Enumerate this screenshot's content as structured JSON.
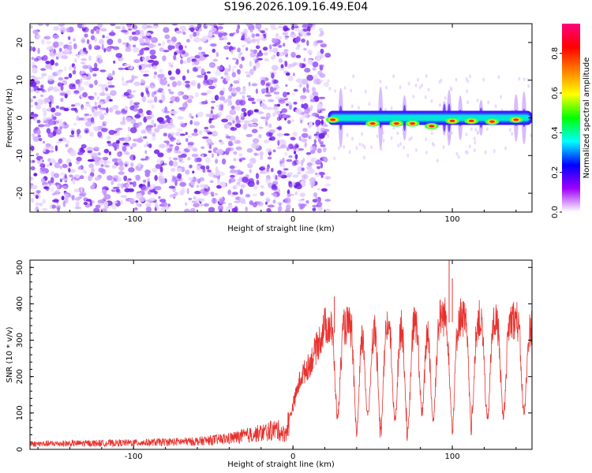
{
  "title": "S196.2026.109.16.49.E04",
  "chart_data": [
    {
      "type": "heatmap",
      "name": "spectrogram",
      "xlabel": "Height of straight line (km)",
      "ylabel": "Frequency (Hz)",
      "xlim": [
        -165,
        150
      ],
      "ylim": [
        -25,
        25
      ],
      "xticks": [
        -100,
        0,
        100
      ],
      "yticks": [
        -20,
        -10,
        0,
        10,
        20
      ],
      "xtick_labels": [
        "-100",
        "0",
        "100"
      ],
      "ytick_labels": [
        "-20",
        "-10",
        "0",
        "10",
        "20"
      ],
      "noise_region_x": [
        -165,
        22
      ],
      "signal_region_x": [
        22,
        150
      ],
      "signal_center_hz": 0,
      "hot_spots": [
        {
          "x": 25,
          "y": -0.5,
          "level": 0.9
        },
        {
          "x": 50,
          "y": -1.5,
          "level": 0.75
        },
        {
          "x": 65,
          "y": -1.5,
          "level": 0.8
        },
        {
          "x": 75,
          "y": -1.5,
          "level": 0.85
        },
        {
          "x": 87,
          "y": -2.2,
          "level": 0.8
        },
        {
          "x": 100,
          "y": -0.8,
          "level": 0.7
        },
        {
          "x": 112,
          "y": -0.8,
          "level": 0.75
        },
        {
          "x": 125,
          "y": -1.0,
          "level": 0.7
        },
        {
          "x": 140,
          "y": -0.5,
          "level": 0.9
        }
      ],
      "colorbar": {
        "label": "Normalized spectral amplitude",
        "range": [
          0,
          0.95
        ],
        "ticks": [
          0.0,
          0.2,
          0.4,
          0.6,
          0.8
        ],
        "tick_labels": [
          "0.0",
          "0.2",
          "0.4",
          "0.6",
          "0.8"
        ],
        "colors": [
          "#ffffff",
          "#9f00ff",
          "#0000ff",
          "#00ffff",
          "#00ff00",
          "#ffff00",
          "#ff8000",
          "#ff0000",
          "#ff0080"
        ]
      }
    },
    {
      "type": "line",
      "name": "snr",
      "xlabel": "Height of straight line (km)",
      "ylabel": "SNR (10 * v/v)",
      "xlim": [
        -165,
        150
      ],
      "ylim": [
        0,
        520
      ],
      "xticks": [
        -100,
        0,
        100
      ],
      "yticks": [
        0,
        100,
        200,
        300,
        400,
        500
      ],
      "xtick_labels": [
        "-100",
        "0",
        "100"
      ],
      "ytick_labels": [
        "0",
        "100",
        "200",
        "300",
        "400",
        "500"
      ],
      "color": "#e8322e",
      "envelope": [
        {
          "x": -165,
          "y": 15
        },
        {
          "x": -100,
          "y": 18
        },
        {
          "x": -60,
          "y": 22
        },
        {
          "x": -40,
          "y": 30
        },
        {
          "x": -20,
          "y": 45
        },
        {
          "x": -10,
          "y": 55
        },
        {
          "x": -5,
          "y": 40
        },
        {
          "x": 0,
          "y": 120
        },
        {
          "x": 5,
          "y": 200
        },
        {
          "x": 10,
          "y": 230
        },
        {
          "x": 15,
          "y": 280
        },
        {
          "x": 20,
          "y": 340
        },
        {
          "x": 30,
          "y": 340
        },
        {
          "x": 45,
          "y": 345
        },
        {
          "x": 60,
          "y": 350
        },
        {
          "x": 75,
          "y": 355
        },
        {
          "x": 90,
          "y": 365
        },
        {
          "x": 100,
          "y": 370
        },
        {
          "x": 110,
          "y": 360
        },
        {
          "x": 125,
          "y": 355
        },
        {
          "x": 140,
          "y": 360
        },
        {
          "x": 150,
          "y": 340
        }
      ],
      "dips": [
        {
          "x": 28,
          "y": 90
        },
        {
          "x": 40,
          "y": 50
        },
        {
          "x": 47,
          "y": 90
        },
        {
          "x": 55,
          "y": 60
        },
        {
          "x": 64,
          "y": 80
        },
        {
          "x": 72,
          "y": 40
        },
        {
          "x": 81,
          "y": 100
        },
        {
          "x": 88,
          "y": 80
        },
        {
          "x": 100,
          "y": 70
        },
        {
          "x": 112,
          "y": 70
        },
        {
          "x": 122,
          "y": 80
        },
        {
          "x": 132,
          "y": 90
        },
        {
          "x": 145,
          "y": 100
        }
      ],
      "spikes": [
        {
          "x": 26,
          "y": 420
        },
        {
          "x": 98,
          "y": 520
        },
        {
          "x": 100,
          "y": 470
        }
      ]
    }
  ]
}
